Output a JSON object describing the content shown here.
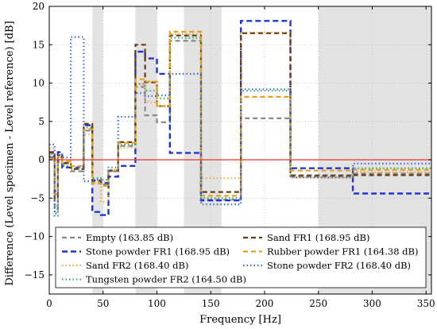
{
  "chart_data": {
    "type": "line",
    "step": true,
    "xlabel": "Frequency [Hz]",
    "ylabel": "Difference (Level specimen - Level reference) [dB]",
    "xlim": [
      0,
      355
    ],
    "ylim": [
      -17.5,
      20
    ],
    "xticks": [
      0,
      50,
      100,
      150,
      200,
      250,
      300,
      350
    ],
    "yticks": [
      -15,
      -10,
      -5,
      0,
      5,
      10,
      15,
      20
    ],
    "grid": "dotted",
    "legend_position": "bottom-left",
    "legend_columns": 2,
    "reference_line": {
      "y": 0,
      "color": "#e8423c"
    },
    "shaded_bands": [
      [
        40,
        50
      ],
      [
        80,
        100
      ],
      [
        125,
        160
      ],
      [
        250,
        355
      ]
    ],
    "bin_edges": [
      0,
      5,
      8,
      12,
      20,
      32,
      40,
      48,
      55,
      64,
      80,
      89,
      100,
      112,
      141,
      178,
      224,
      282,
      355
    ],
    "series": [
      {
        "name": "Empty (163.85 dB)",
        "color": "#888888",
        "dash": "6,4",
        "width": 2.2,
        "values": [
          0.8,
          -6.5,
          0.3,
          -0.5,
          -1.5,
          3.8,
          -2.8,
          -3.2,
          -1.5,
          1.8,
          9.5,
          5.8,
          4.9,
          15.5,
          -5.2,
          5.4,
          -2.0,
          -1.8
        ]
      },
      {
        "name": "Stone powder FR1 (168.95 dB)",
        "color": "#1f35d8",
        "dash": "7,4",
        "width": 2.4,
        "values": [
          0.3,
          -4.1,
          1.0,
          -1.0,
          -1.0,
          4.5,
          -6.8,
          -7.2,
          -2.2,
          -0.8,
          14.1,
          13.2,
          11.2,
          0.9,
          -5.3,
          18.1,
          -1.1,
          -4.4
        ]
      },
      {
        "name": "Sand FR2 (168.40 dB)",
        "color": "#f0a742",
        "dash": "1.5,3",
        "width": 2.2,
        "values": [
          1.5,
          -6.0,
          -0.3,
          -0.6,
          -1.0,
          3.3,
          -3.0,
          -5.5,
          -1.3,
          1.6,
          9.8,
          7.5,
          7.0,
          16.4,
          -2.4,
          16.6,
          -2.3,
          -1.6
        ]
      },
      {
        "name": "Tungsten powder FR2 (164.50 dB)",
        "color": "#3aa66b",
        "dash": "1.5,3",
        "width": 2.2,
        "values": [
          0.5,
          -7.3,
          0.0,
          -0.8,
          -1.2,
          4.2,
          -2.4,
          -2.6,
          -1.0,
          2.0,
          9.9,
          9.0,
          8.0,
          15.9,
          -5.0,
          9.0,
          -2.3,
          -1.1
        ]
      },
      {
        "name": "Sand FR1 (168.95 dB)",
        "color": "#6b3a0f",
        "dash": "6,4",
        "width": 2.2,
        "values": [
          1.0,
          -5.0,
          0.6,
          -0.4,
          -1.2,
          4.7,
          -2.7,
          -3.0,
          -1.4,
          2.3,
          15.0,
          10.1,
          7.0,
          16.2,
          -4.2,
          16.5,
          -2.1,
          -2.0
        ]
      },
      {
        "name": "Rubber powder FR1 (164.38 dB)",
        "color": "#e6a11a",
        "dash": "6,4",
        "width": 2.2,
        "values": [
          0.2,
          -4.5,
          0.4,
          -0.2,
          -0.8,
          4.0,
          -3.1,
          -3.4,
          -1.5,
          2.2,
          10.5,
          10.2,
          7.0,
          16.7,
          -4.7,
          8.2,
          -1.4,
          -1.3
        ]
      },
      {
        "name": "Stone powder FR2 (168.40 dB)",
        "color": "#3d6fd9",
        "dash": "1.5,3",
        "width": 2.2,
        "values": [
          2.0,
          -7.0,
          0.6,
          0.3,
          16.0,
          -2.8,
          -2.6,
          -3.0,
          -1.5,
          5.6,
          8.7,
          8.3,
          8.4,
          11.2,
          -5.8,
          9.2,
          -2.3,
          -0.5
        ]
      }
    ]
  }
}
